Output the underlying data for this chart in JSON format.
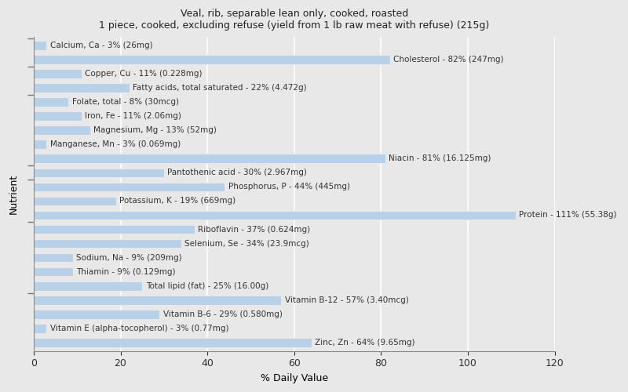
{
  "title_line1": "Veal, rib, separable lean only, cooked, roasted",
  "title_line2": "1 piece, cooked, excluding refuse (yield from 1 lb raw meat with refuse) (215g)",
  "xlabel": "% Daily Value",
  "ylabel": "Nutrient",
  "xlim": [
    0,
    120
  ],
  "xticks": [
    0,
    20,
    40,
    60,
    80,
    100,
    120
  ],
  "bar_color": "#b8d0e8",
  "background_color": "#e8e8e8",
  "label_color": "#333333",
  "label_fontsize": 7.5,
  "bar_height": 0.65,
  "nutrients": [
    {
      "label": "Calcium, Ca - 3% (26mg)",
      "value": 3
    },
    {
      "label": "Cholesterol - 82% (247mg)",
      "value": 82
    },
    {
      "label": "Copper, Cu - 11% (0.228mg)",
      "value": 11
    },
    {
      "label": "Fatty acids, total saturated - 22% (4.472g)",
      "value": 22
    },
    {
      "label": "Folate, total - 8% (30mcg)",
      "value": 8
    },
    {
      "label": "Iron, Fe - 11% (2.06mg)",
      "value": 11
    },
    {
      "label": "Magnesium, Mg - 13% (52mg)",
      "value": 13
    },
    {
      "label": "Manganese, Mn - 3% (0.069mg)",
      "value": 3
    },
    {
      "label": "Niacin - 81% (16.125mg)",
      "value": 81
    },
    {
      "label": "Pantothenic acid - 30% (2.967mg)",
      "value": 30
    },
    {
      "label": "Phosphorus, P - 44% (445mg)",
      "value": 44
    },
    {
      "label": "Potassium, K - 19% (669mg)",
      "value": 19
    },
    {
      "label": "Protein - 111% (55.38g)",
      "value": 111
    },
    {
      "label": "Riboflavin - 37% (0.624mg)",
      "value": 37
    },
    {
      "label": "Selenium, Se - 34% (23.9mcg)",
      "value": 34
    },
    {
      "label": "Sodium, Na - 9% (209mg)",
      "value": 9
    },
    {
      "label": "Thiamin - 9% (0.129mg)",
      "value": 9
    },
    {
      "label": "Total lipid (fat) - 25% (16.00g)",
      "value": 25
    },
    {
      "label": "Vitamin B-12 - 57% (3.40mcg)",
      "value": 57
    },
    {
      "label": "Vitamin B-6 - 29% (0.580mg)",
      "value": 29
    },
    {
      "label": "Vitamin E (alpha-tocopherol) - 3% (0.77mg)",
      "value": 3
    },
    {
      "label": "Zinc, Zn - 64% (9.65mg)",
      "value": 64
    }
  ]
}
